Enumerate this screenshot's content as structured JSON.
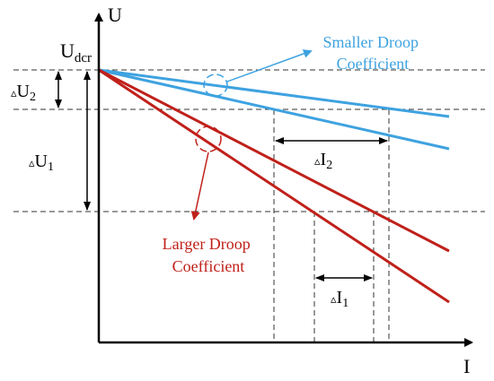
{
  "axes": {
    "y_label": "U",
    "x_label": "I",
    "origin_level_label_main": "U",
    "origin_level_label_sub": "dcr"
  },
  "annotations": {
    "delta_u2": {
      "symbol": "▵",
      "main": "U",
      "sub": "2"
    },
    "delta_u1": {
      "symbol": "▵",
      "main": "U",
      "sub": "1"
    },
    "delta_i2": {
      "symbol": "▵",
      "main": "I",
      "sub": "2"
    },
    "delta_i1": {
      "symbol": "▵",
      "main": "I",
      "sub": "1"
    }
  },
  "callouts": {
    "smaller_droop": {
      "line1": "Smaller Droop",
      "line2": "Coefficient"
    },
    "larger_droop": {
      "line1": "Larger Droop",
      "line2": "Coefficient"
    }
  },
  "colors": {
    "blue": "#3ea2e0",
    "red": "#c0201a",
    "axis": "#000000",
    "dashed": "#333333"
  }
}
